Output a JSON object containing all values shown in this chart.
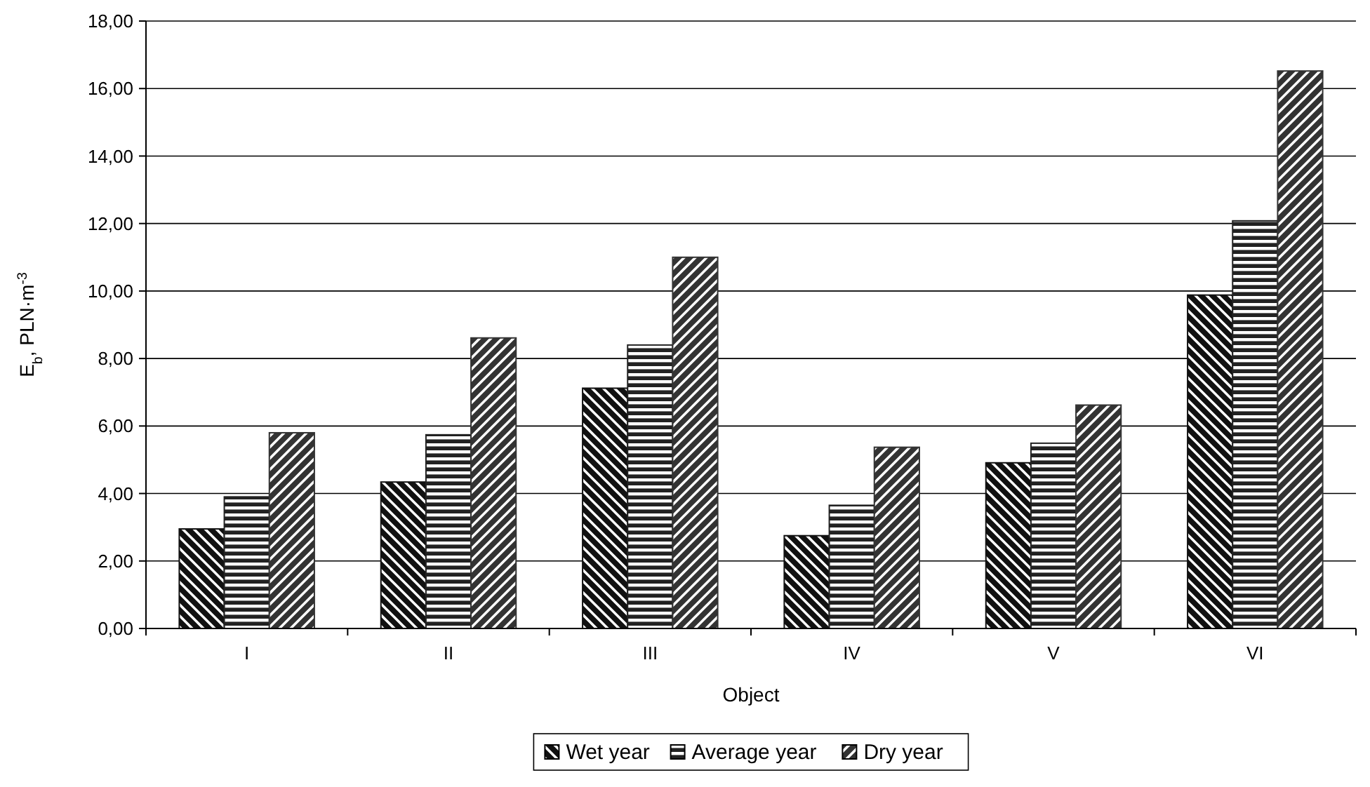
{
  "chart_data": {
    "type": "bar",
    "xlabel": "Object",
    "ylabel": "E$_{b}$, PLN·m$^{-3}$",
    "categories": [
      "I",
      "II",
      "III",
      "IV",
      "V",
      "VI"
    ],
    "series": [
      {
        "name": "Wet year",
        "color": "#111111",
        "values": [
          2.95,
          4.34,
          7.12,
          2.75,
          4.91,
          9.88
        ]
      },
      {
        "name": "Average year",
        "color": "#222222",
        "values": [
          3.9,
          5.74,
          8.4,
          3.65,
          5.49,
          12.08
        ]
      },
      {
        "name": "Dry year",
        "color": "#333333",
        "values": [
          5.8,
          8.61,
          11.0,
          5.37,
          6.62,
          16.52
        ]
      }
    ],
    "ylim": [
      0,
      18
    ],
    "yticks": [
      {
        "value": 0,
        "label": "0,00"
      },
      {
        "value": 2,
        "label": "2,00"
      },
      {
        "value": 4,
        "label": "4,00"
      },
      {
        "value": 6,
        "label": "6,00"
      },
      {
        "value": 8,
        "label": "8,00"
      },
      {
        "value": 10,
        "label": "10,00"
      },
      {
        "value": 12,
        "label": "12,00"
      },
      {
        "value": 14,
        "label": "14,00"
      },
      {
        "value": 16,
        "label": "16,00"
      },
      {
        "value": 18,
        "label": "18,00"
      }
    ],
    "grid": "y",
    "legend": "bottom"
  }
}
